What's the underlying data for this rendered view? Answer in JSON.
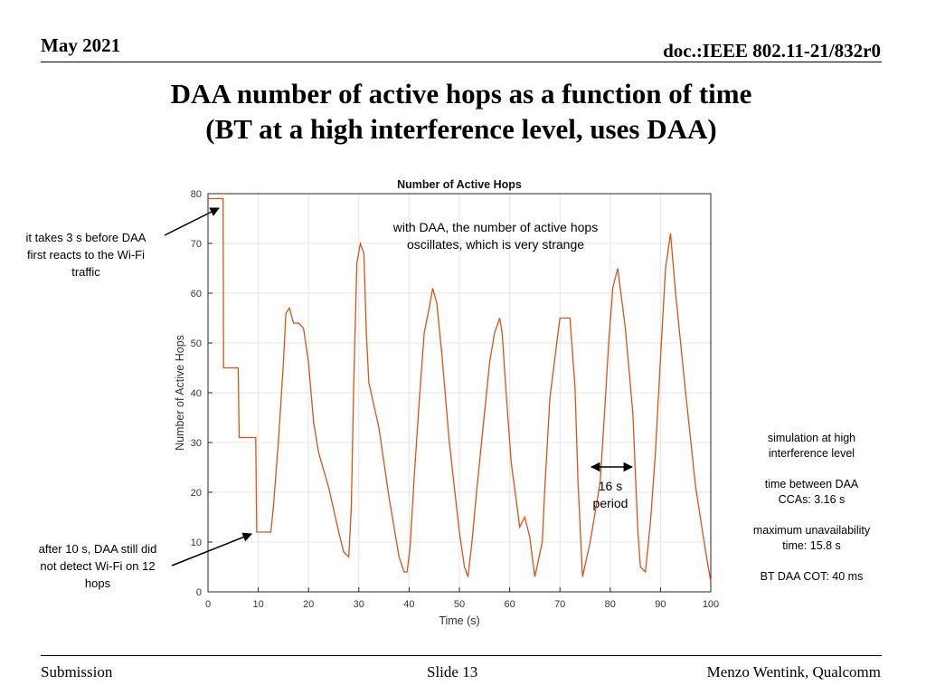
{
  "header": {
    "date": "May 2021",
    "doc": "doc.:IEEE 802.11-21/832r0"
  },
  "slide_title": {
    "line1": "DAA number of active hops as a function of time",
    "line2": "(BT at a high interference level, uses DAA)"
  },
  "annotations": {
    "left_top": [
      "it takes 3 s before DAA",
      "first reacts to the Wi-Fi",
      "traffic"
    ],
    "left_bottom": [
      "after 10 s, DAA still did",
      "not detect Wi-Fi on 12",
      "hops"
    ],
    "chart_note": [
      "with DAA, the number of active hops",
      "oscillates, which is very strange"
    ],
    "period": [
      "16 s",
      "period"
    ],
    "right": [
      "simulation at high",
      "interference level",
      "",
      "time between DAA",
      "CCAs: 3.16 s",
      "",
      "maximum unavailability",
      "time: 15.8 s",
      "",
      "BT DAA COT: 40 ms"
    ]
  },
  "footer": {
    "left": "Submission",
    "center": "Slide 13",
    "right": "Menzo Wentink, Qualcomm"
  },
  "colors": {
    "line": "#d95319",
    "arrow": "#000000",
    "grid": "#e6e6e6"
  },
  "chart_data": {
    "type": "line",
    "title": "Number of Active Hops",
    "xlabel": "Time (s)",
    "ylabel": "Number of Active Hops",
    "xlim": [
      0,
      100
    ],
    "ylim": [
      0,
      80
    ],
    "xticks": [
      0,
      10,
      20,
      30,
      40,
      50,
      60,
      70,
      80,
      90,
      100
    ],
    "yticks": [
      0,
      10,
      20,
      30,
      40,
      50,
      60,
      70,
      80
    ],
    "grid": true,
    "series": [
      {
        "x": [
          0,
          3,
          3.1,
          6,
          6.2,
          9.5,
          9.7,
          12,
          12.5,
          13,
          14,
          15,
          15.5,
          16.2,
          17,
          18,
          19,
          20,
          21,
          22,
          24,
          26,
          27,
          28,
          28.5,
          29,
          29.6,
          30.3,
          31,
          31.5,
          32,
          34,
          36,
          38,
          39,
          39.6,
          40.2,
          41,
          42,
          43,
          44,
          44.7,
          45.5,
          46.5,
          48,
          50,
          51,
          51.7,
          52.5,
          53.5,
          55,
          56,
          57,
          58,
          58.5,
          59.3,
          60.3,
          61.5,
          62,
          63,
          64,
          65,
          66.5,
          67,
          68,
          70,
          72,
          73,
          73.6,
          74.5,
          76,
          78,
          79,
          79.7,
          80.5,
          81.5,
          83,
          84.5,
          85.5,
          86,
          87,
          88,
          89,
          90,
          91,
          92,
          93,
          95,
          97,
          99,
          100
        ],
        "y": [
          79,
          79,
          45,
          45,
          31,
          31,
          12,
          12,
          12,
          17,
          30,
          46,
          56,
          57,
          54,
          54,
          53,
          46,
          34,
          28,
          21,
          12,
          8,
          7,
          17,
          42,
          66,
          70,
          68,
          52,
          42,
          33,
          19,
          7,
          4,
          4,
          9,
          23,
          38,
          52,
          57,
          61,
          58,
          48,
          30,
          12,
          5,
          3,
          10,
          21,
          36,
          46,
          52,
          55,
          52,
          40,
          26,
          17,
          13,
          15,
          11,
          3,
          10,
          21,
          39,
          55,
          55,
          41,
          22,
          3,
          10,
          22,
          38,
          50,
          61,
          65,
          53,
          36,
          12,
          5,
          4,
          14,
          28,
          47,
          65,
          72,
          60,
          40,
          21,
          8,
          2
        ]
      }
    ]
  }
}
